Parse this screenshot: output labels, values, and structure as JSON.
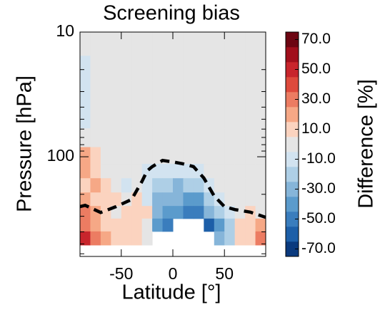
{
  "chart_data": {
    "type": "heatmap",
    "title": "Screening bias",
    "x_label": "Latitude [°]",
    "y_label": "Pressure [hPa]",
    "x": [
      -85,
      -75,
      -65,
      -55,
      -45,
      -35,
      -25,
      -15,
      -5,
      5,
      15,
      25,
      35,
      45,
      55,
      65,
      75,
      85
    ],
    "y": [
      12,
      20,
      30,
      50,
      70,
      100,
      130,
      170,
      220,
      280,
      350,
      450
    ],
    "z": [
      [
        0,
        0,
        0,
        0,
        0,
        0,
        0,
        0,
        0,
        0,
        0,
        0,
        0,
        0,
        0,
        0,
        0,
        0
      ],
      [
        -10,
        0,
        0,
        0,
        0,
        0,
        0,
        0,
        0,
        0,
        0,
        0,
        0,
        0,
        0,
        0,
        0,
        0
      ],
      [
        -10,
        0,
        0,
        0,
        0,
        0,
        0,
        0,
        0,
        0,
        0,
        0,
        0,
        0,
        0,
        0,
        0,
        0
      ],
      [
        -10,
        0,
        0,
        0,
        0,
        0,
        0,
        0,
        0,
        0,
        0,
        0,
        0,
        0,
        0,
        0,
        0,
        0
      ],
      [
        0,
        0,
        0,
        0,
        0,
        0,
        0,
        0,
        0,
        0,
        0,
        0,
        0,
        0,
        0,
        0,
        0,
        0
      ],
      [
        20,
        10,
        0,
        0,
        0,
        0,
        0,
        0,
        0,
        0,
        0,
        0,
        0,
        0,
        0,
        0,
        0,
        0
      ],
      [
        20,
        10,
        0,
        0,
        0,
        0,
        -10,
        -10,
        -10,
        -10,
        -10,
        -10,
        0,
        0,
        0,
        0,
        0,
        0
      ],
      [
        10,
        20,
        10,
        0,
        -10,
        0,
        -10,
        -20,
        -20,
        -30,
        -20,
        -20,
        -10,
        0,
        0,
        0,
        0,
        0
      ],
      [
        20,
        10,
        10,
        10,
        0,
        10,
        -10,
        -30,
        -30,
        -30,
        -40,
        -40,
        -20,
        -10,
        0,
        0,
        0,
        0
      ],
      [
        30,
        20,
        10,
        0,
        10,
        10,
        10,
        -30,
        -40,
        -40,
        -50,
        -50,
        -30,
        -20,
        -10,
        0,
        10,
        0
      ],
      [
        30,
        20,
        10,
        10,
        10,
        10,
        0,
        -40,
        -50,
        null,
        null,
        null,
        -60,
        -40,
        -20,
        10,
        10,
        20
      ],
      [
        50,
        30,
        20,
        10,
        10,
        10,
        0,
        null,
        null,
        null,
        null,
        null,
        null,
        -30,
        -20,
        10,
        10,
        30
      ]
    ],
    "contour_line": {
      "x": [
        -90,
        -85,
        -70,
        -55,
        -40,
        -30,
        -25,
        -20,
        -10,
        0,
        10,
        20,
        30,
        40,
        50,
        60,
        75,
        90
      ],
      "y": [
        251,
        245,
        280,
        251,
        220,
        158,
        130,
        120,
        107,
        110,
        114,
        120,
        148,
        206,
        251,
        265,
        278,
        306
      ],
      "color": "#000000"
    },
    "xlim": [
      -90,
      90
    ],
    "xticks": [
      -50,
      0,
      50
    ],
    "ylim": [
      10,
      630
    ],
    "yticks": [
      10,
      100
    ],
    "yminorticks": [
      20,
      30,
      40,
      50,
      60,
      70,
      80,
      90,
      200,
      300,
      400,
      500,
      600
    ],
    "log_y": true,
    "colorbar": {
      "label": "Difference [%]",
      "clim": [
        -75,
        75
      ],
      "colors": [
        "#0b3a7e",
        "#1d5fa8",
        "#3a7dbd",
        "#5b9bcc",
        "#86b5d9",
        "#aecfe6",
        "#d2e3f0",
        "#e5e5e5",
        "#fbd3bf",
        "#f6a886",
        "#ec7c62",
        "#de4a3c",
        "#c8252c",
        "#a10f1c",
        "#6d0512"
      ],
      "ticks": [
        {
          "value": -70,
          "label": "-70.0"
        },
        {
          "value": -50,
          "label": "-50.0"
        },
        {
          "value": -30,
          "label": "-30.0"
        },
        {
          "value": -10,
          "label": "-10.0"
        },
        {
          "value": 10,
          "label": "10.0"
        },
        {
          "value": 30,
          "label": "30.0"
        },
        {
          "value": 50,
          "label": "50.0"
        },
        {
          "value": 70,
          "label": "70.0"
        }
      ]
    }
  }
}
